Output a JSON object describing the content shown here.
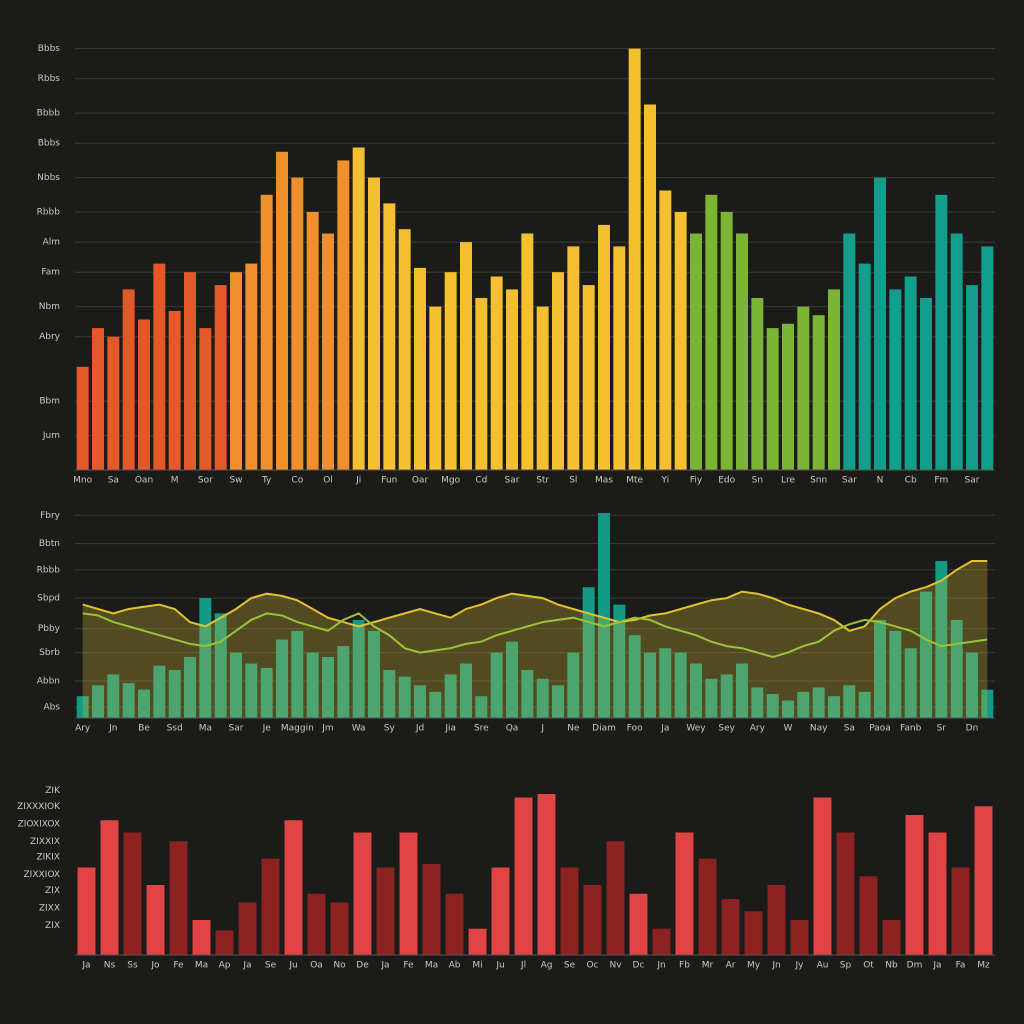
{
  "chart_data": [
    {
      "type": "bar",
      "grid": true,
      "ylim": [
        0,
        100
      ],
      "yticks": [
        {
          "value": 98,
          "label": "Bbbs"
        },
        {
          "value": 91,
          "label": "Rbbs"
        },
        {
          "value": 83,
          "label": "Bbbb"
        },
        {
          "value": 76,
          "label": "Bbbs"
        },
        {
          "value": 68,
          "label": "Nbbs"
        },
        {
          "value": 60,
          "label": "Rbbb"
        },
        {
          "value": 53,
          "label": "Alm"
        },
        {
          "value": 46,
          "label": "Fam"
        },
        {
          "value": 38,
          "label": "Nbm"
        },
        {
          "value": 31,
          "label": "Abry"
        },
        {
          "value": 16,
          "label": "Bbm"
        },
        {
          "value": 8,
          "label": "Jum"
        }
      ],
      "categories": [
        "Mno",
        null,
        "Sa",
        null,
        "Oan",
        null,
        "M",
        null,
        "Sor",
        null,
        "Sw",
        null,
        "Ty",
        null,
        "Co",
        null,
        "Ol",
        null,
        "Ji",
        null,
        "Fun",
        null,
        "Oar",
        null,
        "Mgo",
        null,
        "Cd",
        null,
        "Sar",
        null,
        "Str",
        null,
        "Sl",
        null,
        "Mas",
        null,
        "Mte",
        null,
        "Yi",
        null,
        "Fiy",
        null,
        "Edo",
        null,
        "Sn",
        null,
        "Lre",
        null,
        "Snn",
        null,
        "Sar",
        null,
        "N",
        null,
        "Cb",
        null,
        "Fm",
        null,
        "Sar",
        null
      ],
      "values": [
        24,
        33,
        31,
        42,
        35,
        48,
        37,
        46,
        33,
        43,
        46,
        48,
        64,
        74,
        68,
        60,
        55,
        72,
        75,
        68,
        62,
        56,
        47,
        38,
        46,
        53,
        40,
        45,
        42,
        55,
        38,
        46,
        52,
        43,
        57,
        52,
        98,
        85,
        65,
        60,
        55,
        64,
        60,
        55,
        40,
        33,
        34,
        38,
        36,
        42,
        55,
        48,
        68,
        42,
        45,
        40,
        64,
        55,
        43,
        52
      ],
      "colors": [
        "#e4582a",
        "#e4582a",
        "#e4582a",
        "#e4582a",
        "#e4582a",
        "#e4582a",
        "#e4582a",
        "#e4582a",
        "#e4582a",
        "#e4582a",
        "#ef8f2e",
        "#ef8f2e",
        "#ef8f2e",
        "#ef8f2e",
        "#ef8f2e",
        "#ef8f2e",
        "#ef8f2e",
        "#ef8f2e",
        "#f4c030",
        "#f4c030",
        "#f4c030",
        "#f4c030",
        "#f4c030",
        "#f4c030",
        "#f4c030",
        "#f4c030",
        "#f4c030",
        "#f4c030",
        "#f4c030",
        "#f4c030",
        "#f4c030",
        "#f4c030",
        "#f4c030",
        "#f4c030",
        "#f4c030",
        "#f4c030",
        "#f4c030",
        "#f4c030",
        "#f4c030",
        "#f4c030",
        "#7cb534",
        "#7cb534",
        "#7cb534",
        "#7cb534",
        "#7cb534",
        "#7cb534",
        "#7cb534",
        "#7cb534",
        "#7cb534",
        "#7cb534",
        "#119e8c",
        "#119e8c",
        "#119e8c",
        "#119e8c",
        "#119e8c",
        "#119e8c",
        "#119e8c",
        "#119e8c",
        "#119e8c",
        "#119e8c"
      ]
    },
    {
      "type": "bar",
      "grid": true,
      "ylim": [
        0,
        100
      ],
      "yticks": [
        {
          "value": 93,
          "label": "Fbry"
        },
        {
          "value": 80,
          "label": "Bbtn"
        },
        {
          "value": 68,
          "label": "Rbbb"
        },
        {
          "value": 55,
          "label": "Sbpd"
        },
        {
          "value": 41,
          "label": "Pbby"
        },
        {
          "value": 30,
          "label": "Sbrb"
        },
        {
          "value": 17,
          "label": "Abbn"
        },
        {
          "value": 5,
          "label": "Abs"
        }
      ],
      "categories": [
        "Ary",
        null,
        "Jn",
        null,
        "Be",
        null,
        "Ssd",
        null,
        "Ma",
        null,
        "Sar",
        null,
        "Je",
        null,
        "Maggin",
        null,
        "Jm",
        null,
        "Wa",
        null,
        "Sy",
        null,
        "Jd",
        null,
        "Jia",
        null,
        "Sre",
        null,
        "Qa",
        null,
        "J",
        null,
        "Ne",
        null,
        "Diam",
        null,
        "Foo",
        null,
        "Ja",
        null,
        "Wey",
        null,
        "Sey",
        null,
        "Ary",
        null,
        "W",
        null,
        "Nay",
        null,
        "Sa",
        null,
        "Paoa",
        null,
        "Fanb",
        null,
        "Sr",
        null,
        "Dn",
        null
      ],
      "series": [
        {
          "type": "bar",
          "color": "#139a86",
          "values": [
            10,
            15,
            20,
            16,
            13,
            24,
            22,
            28,
            55,
            48,
            30,
            25,
            23,
            36,
            40,
            30,
            28,
            33,
            45,
            40,
            22,
            19,
            15,
            12,
            20,
            25,
            10,
            30,
            35,
            22,
            18,
            15,
            30,
            60,
            94,
            52,
            38,
            30,
            32,
            30,
            25,
            18,
            20,
            25,
            14,
            11,
            8,
            12,
            14,
            10,
            15,
            12,
            45,
            40,
            32,
            58,
            72,
            45,
            30,
            13
          ]
        },
        {
          "type": "area",
          "color": "#e3c232",
          "values": [
            52,
            50,
            48,
            50,
            51,
            52,
            50,
            44,
            42,
            46,
            50,
            55,
            57,
            56,
            54,
            50,
            46,
            44,
            42,
            44,
            46,
            48,
            50,
            48,
            46,
            50,
            52,
            55,
            57,
            56,
            55,
            52,
            50,
            48,
            46,
            44,
            45,
            47,
            48,
            50,
            52,
            54,
            55,
            58,
            57,
            55,
            52,
            50,
            48,
            45,
            40,
            42,
            50,
            55,
            58,
            60,
            63,
            68,
            72,
            72
          ]
        },
        {
          "type": "line",
          "color": "#9ac23a",
          "values": [
            48,
            47,
            44,
            42,
            40,
            38,
            36,
            34,
            33,
            35,
            40,
            45,
            48,
            47,
            44,
            42,
            40,
            45,
            48,
            42,
            38,
            32,
            30,
            31,
            32,
            34,
            35,
            38,
            40,
            42,
            44,
            45,
            46,
            44,
            42,
            44,
            46,
            45,
            42,
            40,
            38,
            35,
            33,
            32,
            30,
            28,
            30,
            33,
            35,
            40,
            43,
            45,
            44,
            42,
            40,
            36,
            33,
            34,
            35,
            36
          ]
        }
      ]
    },
    {
      "type": "bar",
      "grid": false,
      "ylim": [
        0,
        100
      ],
      "yticks": [
        {
          "value": 94,
          "label": "ZIK"
        },
        {
          "value": 85,
          "label": "ZIXXXIOK"
        },
        {
          "value": 75,
          "label": "ZIOXIXOX"
        },
        {
          "value": 65,
          "label": "ZIXXIX"
        },
        {
          "value": 56,
          "label": "ZIKIX"
        },
        {
          "value": 46,
          "label": "ZIXXIOX"
        },
        {
          "value": 37,
          "label": "ZIX"
        },
        {
          "value": 27,
          "label": "ZIXX"
        },
        {
          "value": 17,
          "label": "ZIX"
        }
      ],
      "categories": [
        "Ja",
        "Ns",
        "Ss",
        "Jo",
        "Fe",
        "Ma",
        "Ap",
        "Ja",
        "Se",
        "Ju",
        "Oa",
        "No",
        "De",
        "Ja",
        "Fe",
        "Ma",
        "Ab",
        "Mi",
        "Ju",
        "Jl",
        "Ag",
        "Se",
        "Oc",
        "Nv",
        "Dc",
        "Jn",
        "Fb",
        "Mr",
        "Ar",
        "My",
        "Jn",
        "Jy",
        "Au",
        "Sp",
        "Ot",
        "Nb",
        "Dm",
        "Ja",
        "Fa",
        "Mz"
      ],
      "values": [
        50,
        77,
        70,
        40,
        65,
        20,
        14,
        30,
        55,
        77,
        35,
        30,
        70,
        50,
        70,
        52,
        35,
        15,
        50,
        90,
        92,
        50,
        40,
        65,
        35,
        15,
        70,
        55,
        32,
        25,
        40,
        20,
        90,
        70,
        45,
        20,
        80,
        70,
        50,
        85
      ],
      "colors": [
        "#e04444",
        "#e04444",
        "#8c2222",
        "#e04444",
        "#8c2222",
        "#e04444",
        "#8c2222",
        "#8c2222",
        "#8c2222",
        "#e04444",
        "#8c2222",
        "#8c2222",
        "#e04444",
        "#8c2222",
        "#e04444",
        "#8c2222",
        "#8c2222",
        "#e04444",
        "#e04444",
        "#e04444",
        "#e04444",
        "#8c2222",
        "#8c2222",
        "#8c2222",
        "#e04444",
        "#8c2222",
        "#e04444",
        "#8c2222",
        "#8c2222",
        "#8c2222",
        "#8c2222",
        "#8c2222",
        "#e04444",
        "#8c2222",
        "#8c2222",
        "#8c2222",
        "#e04444",
        "#e04444",
        "#8c2222",
        "#e04444"
      ]
    }
  ]
}
